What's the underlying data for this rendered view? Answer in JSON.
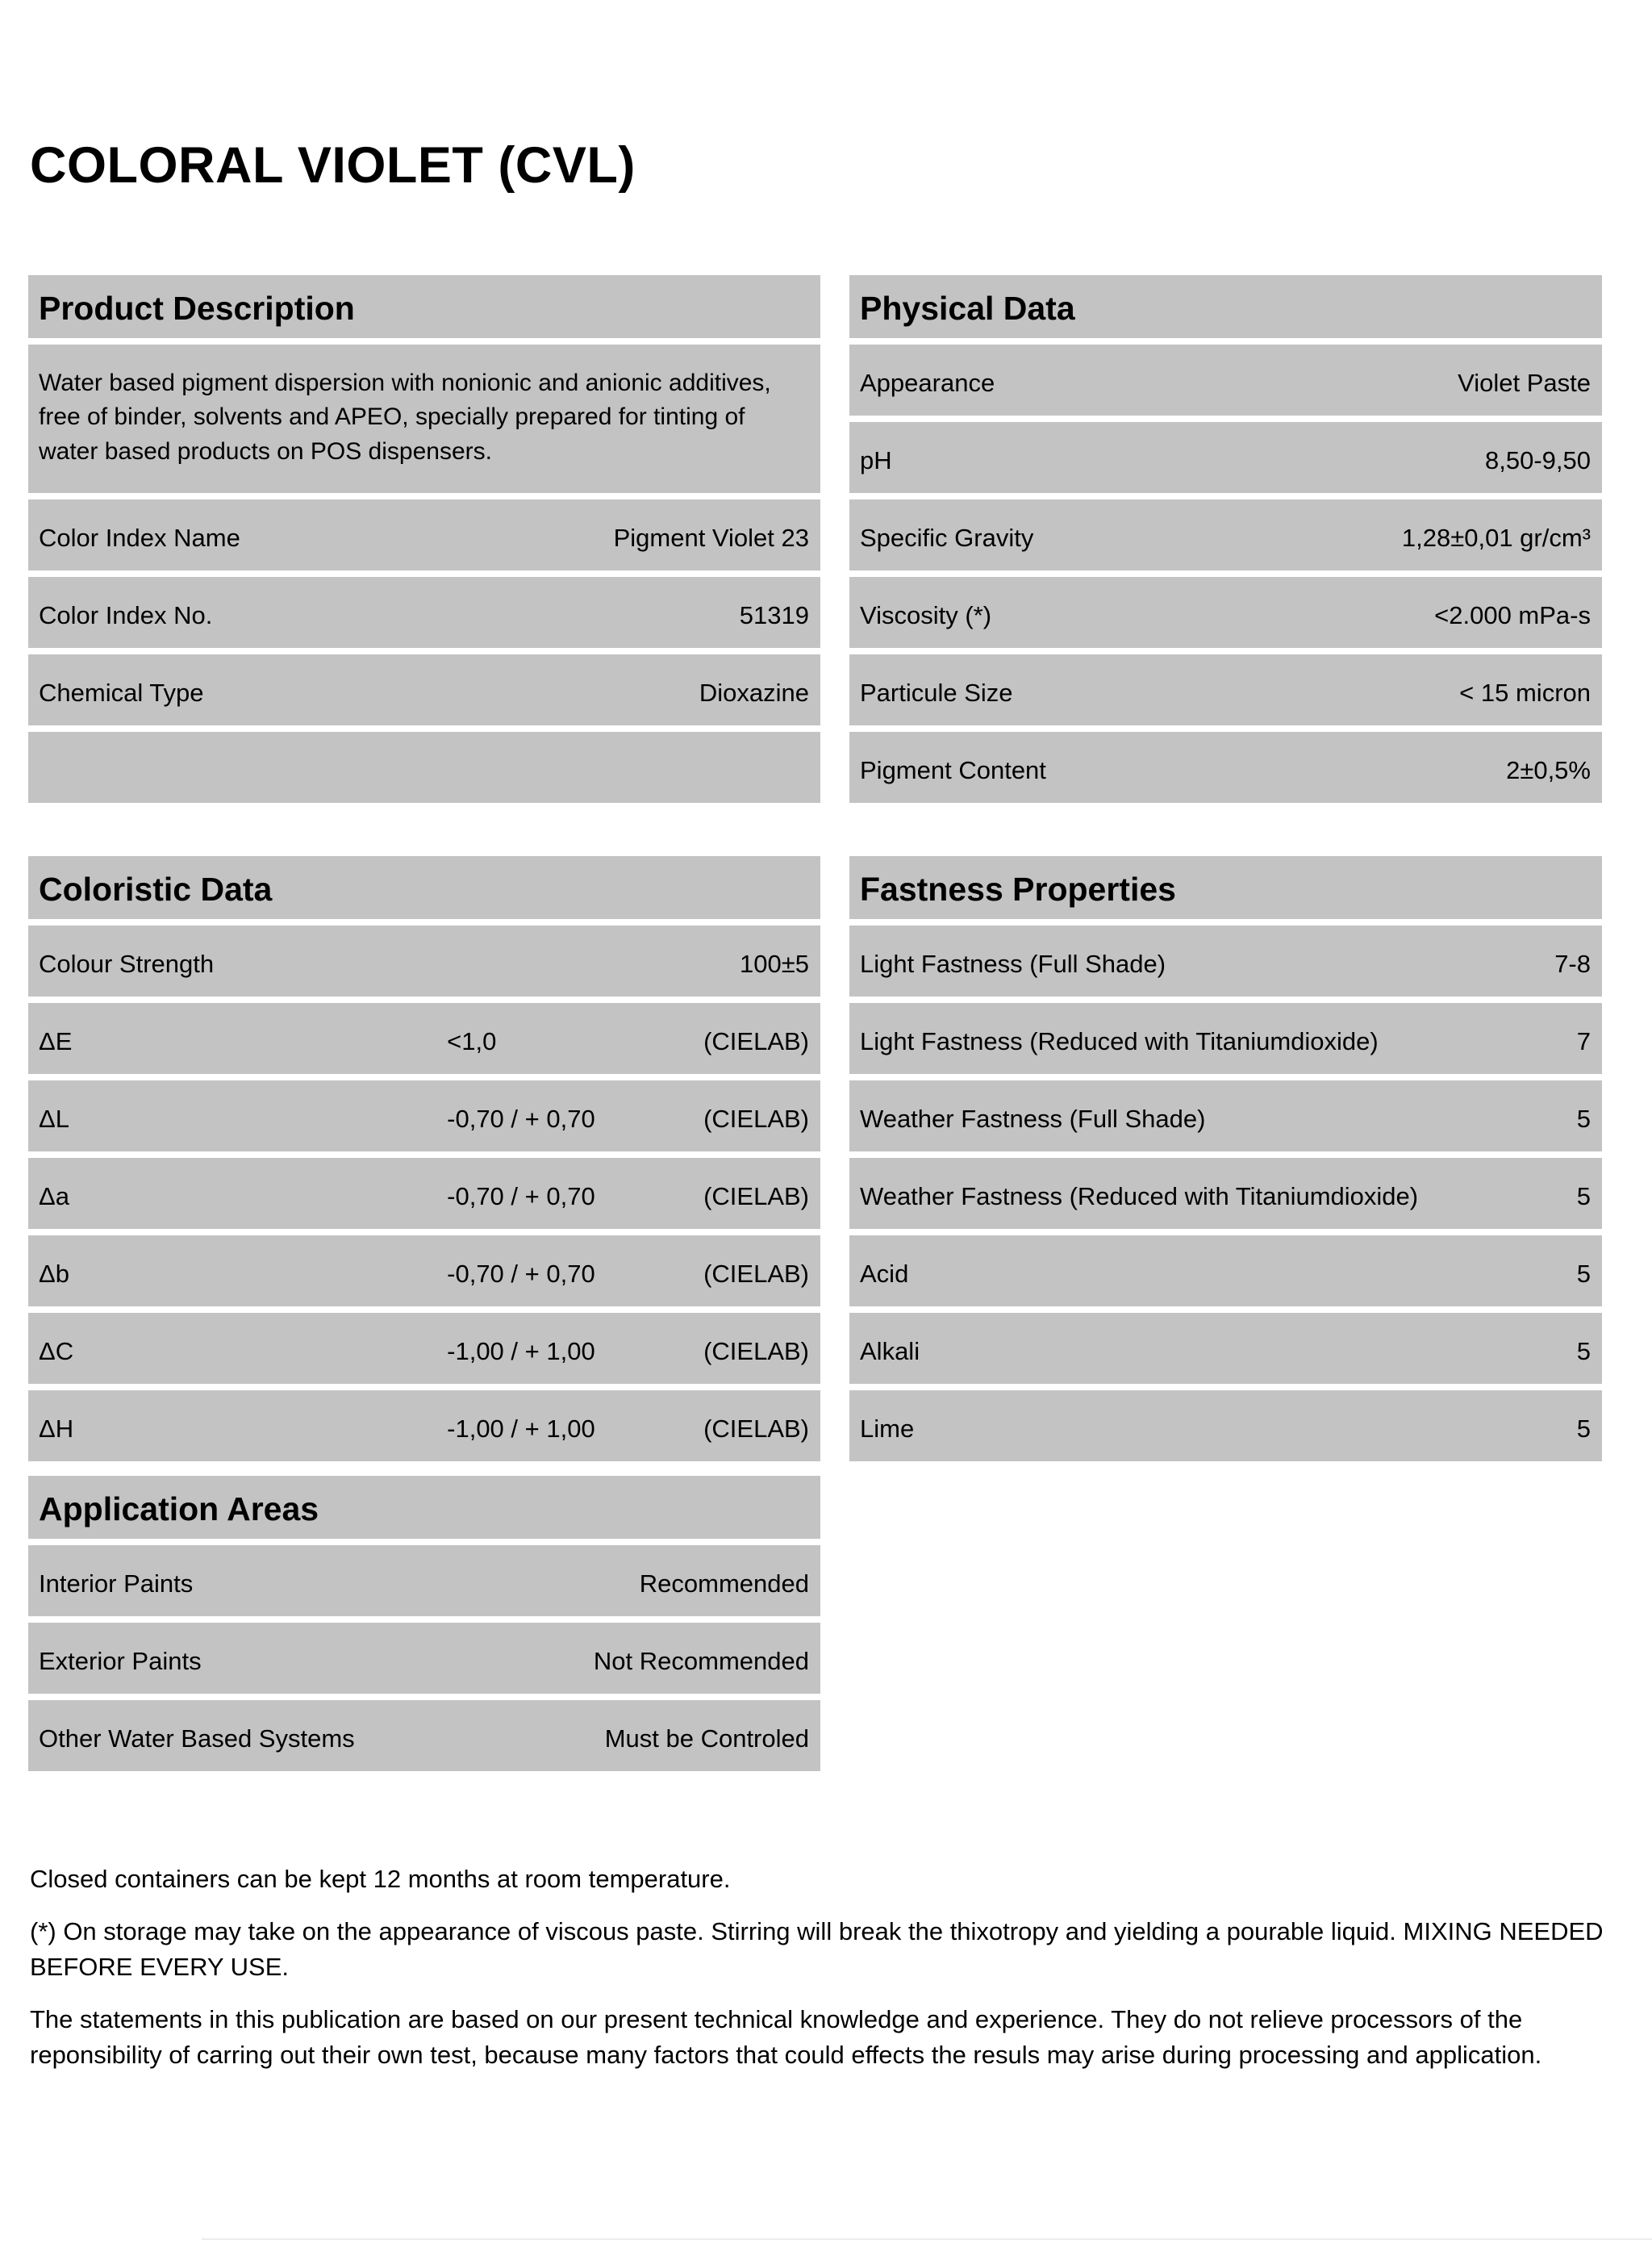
{
  "page_title": "COLORAL VIOLET (CVL)",
  "colors": {
    "block_bg": "#c3c3c3",
    "text": "#000000",
    "page_bg": "#ffffff"
  },
  "sections": {
    "product_description": {
      "title": "Product Description",
      "description": "Water based pigment dispersion with nonionic and anionic additives, free of binder, solvents and APEO, specially prepared for tinting of water based products on POS dispensers.",
      "rows": [
        {
          "label": "Color Index Name",
          "value": "Pigment Violet 23"
        },
        {
          "label": "Color Index No.",
          "value": "51319"
        },
        {
          "label": "Chemical Type",
          "value": "Dioxazine"
        }
      ]
    },
    "physical_data": {
      "title": "Physical Data",
      "rows": [
        {
          "label": "Appearance",
          "value": "Violet Paste"
        },
        {
          "label": "pH",
          "value": "8,50-9,50"
        },
        {
          "label": "Specific Gravity",
          "value": "1,28±0,01 gr/cm³"
        },
        {
          "label": "Viscosity (*)",
          "value": "<2.000 mPa-s"
        },
        {
          "label": "Particule Size",
          "value": "< 15 micron"
        },
        {
          "label": "Pigment Content",
          "value": "2±0,5%"
        }
      ]
    },
    "coloristic_data": {
      "title": "Coloristic Data",
      "rows": [
        {
          "label": "Colour Strength",
          "value": "",
          "unit": "100±5"
        },
        {
          "label": "ΔE",
          "value": "<1,0",
          "unit": "(CIELAB)"
        },
        {
          "label": "ΔL",
          "value": "-0,70 / + 0,70",
          "unit": "(CIELAB)"
        },
        {
          "label": "Δa",
          "value": "-0,70 / + 0,70",
          "unit": "(CIELAB)"
        },
        {
          "label": "Δb",
          "value": "-0,70 / + 0,70",
          "unit": "(CIELAB)"
        },
        {
          "label": "ΔC",
          "value": "-1,00 / + 1,00",
          "unit": "(CIELAB)"
        },
        {
          "label": "ΔH",
          "value": "-1,00 / + 1,00",
          "unit": "(CIELAB)"
        }
      ]
    },
    "fastness_properties": {
      "title": "Fastness Properties",
      "rows": [
        {
          "label": "Light Fastness (Full Shade)",
          "value": "7-8"
        },
        {
          "label": "Light Fastness (Reduced with Titaniumdioxide)",
          "value": "7"
        },
        {
          "label": "Weather Fastness (Full Shade)",
          "value": "5"
        },
        {
          "label": "Weather Fastness (Reduced with Titaniumdioxide)",
          "value": "5"
        },
        {
          "label": "Acid",
          "value": "5"
        },
        {
          "label": "Alkali",
          "value": "5"
        },
        {
          "label": "Lime",
          "value": "5"
        }
      ]
    },
    "application_areas": {
      "title": "Application Areas",
      "rows": [
        {
          "label": "Interior Paints",
          "value": "Recommended"
        },
        {
          "label": "Exterior Paints",
          "value": "Not Recommended"
        },
        {
          "label": "Other Water Based Systems",
          "value": "Must be Controled"
        }
      ]
    }
  },
  "footnotes": [
    "Closed containers can be kept 12 months at room temperature.",
    "(*) On storage may take on the appearance of viscous paste. Stirring will break the thixotropy and yielding a pourable liquid. MIXING NEEDED BEFORE EVERY USE.",
    "The statements in this publication are based on our present technical knowledge and experience. They do not relieve processors of the reponsibility of carring out their own test, because many factors that could effects the resuls may arise during processing and application."
  ]
}
